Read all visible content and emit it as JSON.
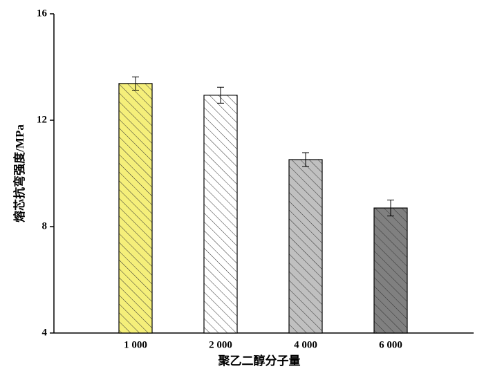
{
  "chart_data": {
    "type": "bar",
    "categories": [
      "1 000",
      "2 000",
      "4 000",
      "6 000"
    ],
    "values": [
      13.38,
      12.94,
      10.52,
      8.7
    ],
    "errors": [
      0.25,
      0.3,
      0.26,
      0.3
    ],
    "colors": [
      "#f5ef7a",
      "#ffffff",
      "#c0c0c0",
      "#808080"
    ],
    "x_label": "聚乙二醇分子量",
    "y_label": "熔芯抗弯强度/MPa",
    "ylim": [
      4,
      16
    ],
    "yticks": [
      4,
      8,
      12,
      16
    ],
    "grid": false
  }
}
